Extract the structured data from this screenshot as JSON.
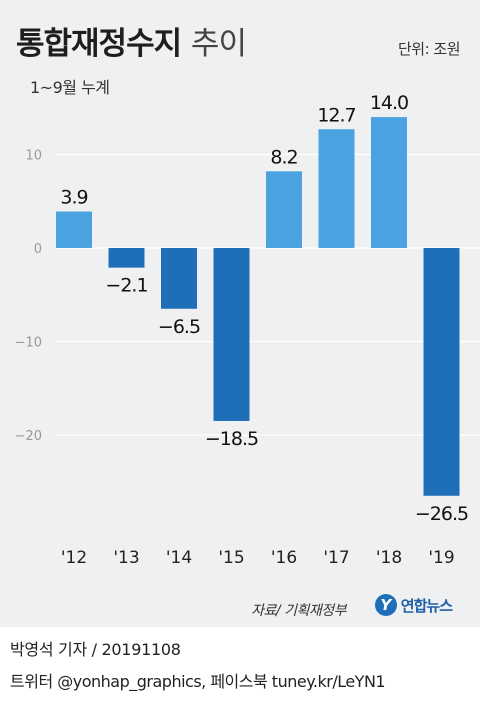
{
  "header": {
    "title_bold": "통합재정수지",
    "title_light": "추이",
    "unit": "단위: 조원",
    "period": "1~9월 누계"
  },
  "colors": {
    "positive_bar": "#4aa3e0",
    "negative_bar": "#1f6fb8",
    "background": "#eef0f2",
    "gridline": "#ffffff",
    "axis_text": "#999999",
    "label_text": "#111111"
  },
  "chart_data": {
    "type": "bar",
    "categories": [
      "'12",
      "'13",
      "'14",
      "'15",
      "'16",
      "'17",
      "'18",
      "'19"
    ],
    "values": [
      3.9,
      -2.1,
      -6.5,
      -18.5,
      8.2,
      12.7,
      14.0,
      -26.5
    ],
    "value_labels": [
      "3.9",
      "−2.1",
      "−6.5",
      "−18.5",
      "8.2",
      "12.7",
      "14.0",
      "−26.5"
    ],
    "y_ticks": [
      10,
      0,
      -10,
      -20
    ],
    "y_tick_labels": [
      "10",
      "0",
      "−10",
      "−20"
    ],
    "ylim": [
      -27,
      15
    ],
    "grid": true
  },
  "footer": {
    "source": "자료/ 기획재정부",
    "logo_mark": "Y",
    "logo_text": "연합뉴스",
    "byline": "박영석 기자 /  20191108",
    "social": "트위터 @yonhap_graphics, 페이스북 tuney.kr/LeYN1"
  }
}
